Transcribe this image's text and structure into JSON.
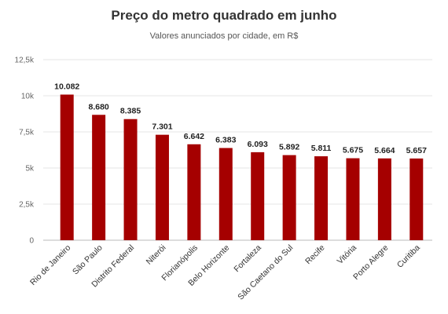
{
  "chart_data": {
    "type": "bar",
    "title": "Preço do metro quadrado em junho",
    "subtitle": "Valores anunciados por cidade, em R$",
    "categories": [
      "Rio de Janeiro",
      "São Paulo",
      "Distrito Federal",
      "Niterói",
      "Florianópolis",
      "Belo Horizonte",
      "Fortaleza",
      "São Caetano do Sul",
      "Recife",
      "Vitória",
      "Porto Alegre",
      "Curitiba"
    ],
    "values": [
      10082,
      8680,
      8385,
      7301,
      6642,
      6383,
      6093,
      5892,
      5811,
      5675,
      5664,
      5657
    ],
    "value_labels": [
      "10.082",
      "8.680",
      "8.385",
      "7.301",
      "6.642",
      "6.383",
      "6.093",
      "5.892",
      "5.811",
      "5.675",
      "5.664",
      "5.657"
    ],
    "ylim": [
      0,
      12500
    ],
    "yticks": [
      0,
      2500,
      5000,
      7500,
      10000,
      12500
    ],
    "ytick_labels": [
      "0",
      "2,5k",
      "5k",
      "7,5k",
      "10k",
      "12,5k"
    ],
    "grid": true,
    "legend": "none",
    "bar_color": "#a50000"
  }
}
